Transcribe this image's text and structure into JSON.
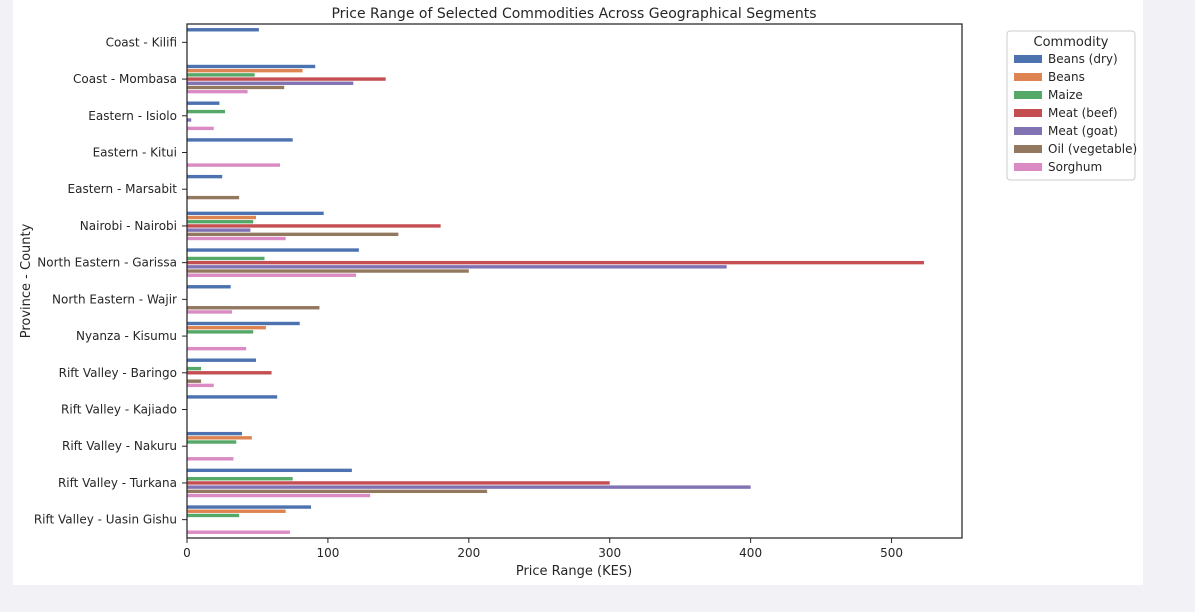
{
  "chart_data": {
    "type": "bar",
    "orientation": "horizontal",
    "title": "Price Range of Selected Commodities Across Geographical Segments",
    "xlabel": "Price Range (KES)",
    "ylabel": "Province - County",
    "xlim": [
      0,
      550
    ],
    "xticks": [
      0,
      100,
      200,
      300,
      400,
      500
    ],
    "grid": false,
    "legend": {
      "title": "Commodity",
      "placement": "upper-right-outside"
    },
    "categories": [
      "Coast - Kilifi",
      "Coast - Mombasa",
      "Eastern - Isiolo",
      "Eastern - Kitui",
      "Eastern - Marsabit",
      "Nairobi - Nairobi",
      "North Eastern - Garissa",
      "North Eastern - Wajir",
      "Nyanza - Kisumu",
      "Rift Valley - Baringo",
      "Rift Valley - Kajiado",
      "Rift Valley - Nakuru",
      "Rift Valley - Turkana",
      "Rift Valley - Uasin Gishu"
    ],
    "series": [
      {
        "name": "Beans (dry)",
        "color": "#4c72b0",
        "values": [
          51,
          91,
          23,
          75,
          25,
          97,
          122,
          31,
          80,
          49,
          64,
          39,
          117,
          88
        ]
      },
      {
        "name": "Beans",
        "color": "#dd8452",
        "values": [
          0,
          82,
          0,
          0,
          0,
          49,
          0,
          0,
          56,
          0,
          0,
          46,
          0,
          70
        ]
      },
      {
        "name": "Maize",
        "color": "#55a868",
        "values": [
          0,
          48,
          27,
          0,
          0,
          47,
          55,
          0,
          47,
          10,
          0,
          35,
          75,
          37
        ]
      },
      {
        "name": "Meat (beef)",
        "color": "#c44e52",
        "values": [
          0,
          141,
          0,
          0,
          0,
          180,
          523,
          0,
          0,
          60,
          0,
          0,
          300,
          0
        ]
      },
      {
        "name": "Meat (goat)",
        "color": "#8172b3",
        "values": [
          0,
          118,
          3,
          0,
          0,
          45,
          383,
          0,
          0,
          0,
          0,
          0,
          400,
          0
        ]
      },
      {
        "name": "Oil (vegetable)",
        "color": "#937860",
        "values": [
          0,
          69,
          0,
          0,
          37,
          150,
          200,
          94,
          0,
          10,
          0,
          0,
          213,
          0
        ]
      },
      {
        "name": "Sorghum",
        "color": "#da8bc3",
        "values": [
          0,
          43,
          19,
          66,
          0,
          70,
          120,
          32,
          42,
          19,
          0,
          33,
          130,
          73
        ]
      }
    ]
  }
}
